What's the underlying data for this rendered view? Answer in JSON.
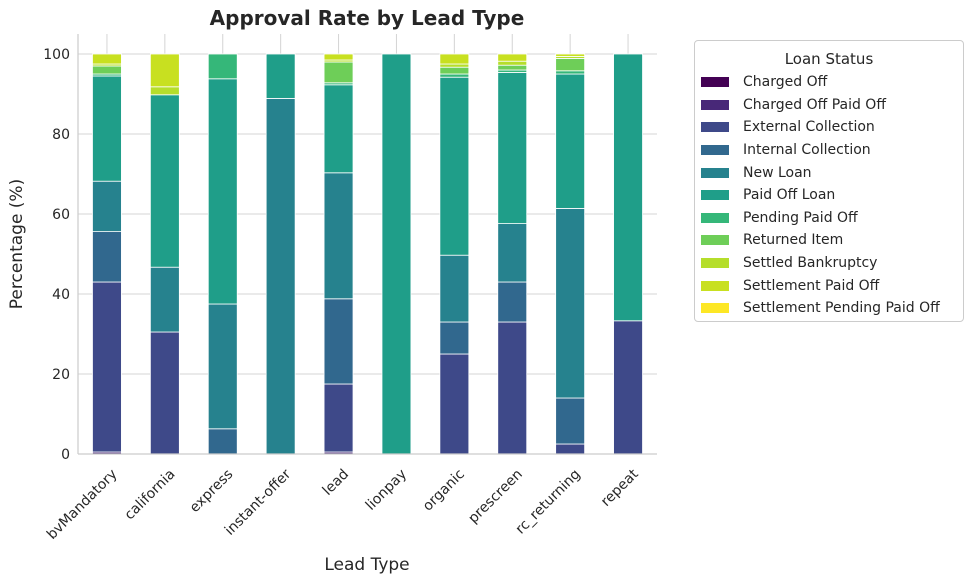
{
  "chart_data": {
    "type": "bar",
    "stacked": true,
    "title": "Approval Rate by Lead Type",
    "xlabel": "Lead Type",
    "ylabel": "Percentage (%)",
    "ylim": [
      0,
      105
    ],
    "yticks": [
      0,
      20,
      40,
      60,
      80,
      100
    ],
    "grid": true,
    "legend_title": "Loan Status",
    "legend_position": "outside-right",
    "categories": [
      "bvMandatory",
      "california",
      "express",
      "instant-offer",
      "lead",
      "lionpay",
      "organic",
      "prescreen",
      "rc_returning",
      "repeat"
    ],
    "series": [
      {
        "name": "Charged Off",
        "color": "#440154",
        "values": [
          0,
          0,
          0,
          0,
          0,
          0,
          0,
          0,
          0,
          0
        ]
      },
      {
        "name": "Charged Off Paid Off",
        "color": "#482878",
        "values": [
          0.5,
          0,
          0,
          0,
          0.5,
          0,
          0,
          0,
          0,
          0
        ]
      },
      {
        "name": "External Collection",
        "color": "#3e4989",
        "values": [
          42.5,
          30.5,
          0,
          0,
          17,
          0,
          25,
          33,
          2.5,
          33.3
        ]
      },
      {
        "name": "Internal Collection",
        "color": "#31688e",
        "values": [
          12.6,
          0,
          6.3,
          0,
          21.3,
          0,
          8,
          10,
          11.5,
          0
        ]
      },
      {
        "name": "New Loan",
        "color": "#26828e",
        "values": [
          12.6,
          16.2,
          31.2,
          88.9,
          31.5,
          0,
          16.7,
          14.6,
          47.4,
          0
        ]
      },
      {
        "name": "Paid Off Loan",
        "color": "#1f9e89",
        "values": [
          26.3,
          43.1,
          56.3,
          11.1,
          22,
          100,
          44.5,
          37.8,
          33.6,
          66.7
        ]
      },
      {
        "name": "Pending Paid Off",
        "color": "#35b779",
        "values": [
          0.5,
          0,
          6.2,
          0,
          0.5,
          0,
          0.8,
          0.6,
          0.8,
          0
        ]
      },
      {
        "name": "Returned Item",
        "color": "#6ece58",
        "values": [
          2,
          0,
          0,
          0,
          5.2,
          0,
          1.7,
          1.2,
          3.1,
          0
        ]
      },
      {
        "name": "Settled Bankruptcy",
        "color": "#b5de2b",
        "values": [
          0.5,
          2,
          0,
          0,
          0.5,
          0,
          0.8,
          1,
          0.5,
          0
        ]
      },
      {
        "name": "Settlement Paid Off",
        "color": "#c8e020",
        "values": [
          2.5,
          8.2,
          0,
          0,
          1.5,
          0,
          2.5,
          1.8,
          0.6,
          0
        ]
      },
      {
        "name": "Settlement Pending Paid Off",
        "color": "#fde725",
        "values": [
          0,
          0,
          0,
          0,
          0,
          0,
          0,
          0,
          0,
          0
        ]
      }
    ]
  }
}
